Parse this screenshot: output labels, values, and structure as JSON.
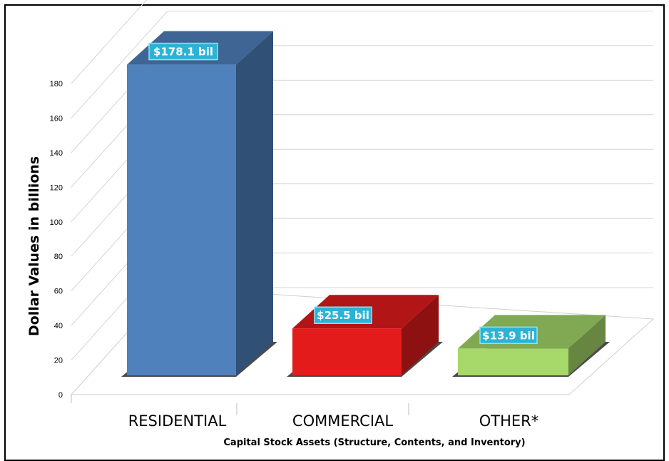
{
  "chart_data": {
    "type": "bar",
    "categories": [
      "RESIDENTIAL",
      "COMMERCIAL",
      "OTHER*"
    ],
    "values": [
      178.1,
      25.5,
      13.9
    ],
    "data_labels": [
      "$178.1 bil",
      "$25.5 bil",
      "$13.9 bil"
    ],
    "colors": [
      "#4f81bd",
      "#e31b1b",
      "#a6d86a"
    ],
    "title": "",
    "xlabel": "Capital Stock Assets (Structure, Contents, and Inventory)",
    "ylabel": "Dollar Values in billions",
    "ylim": [
      0,
      180
    ],
    "yticks": [
      "0",
      "20",
      "40",
      "60",
      "80",
      "100",
      "120",
      "140",
      "160",
      "180"
    ],
    "grid": true,
    "three_d": true
  }
}
